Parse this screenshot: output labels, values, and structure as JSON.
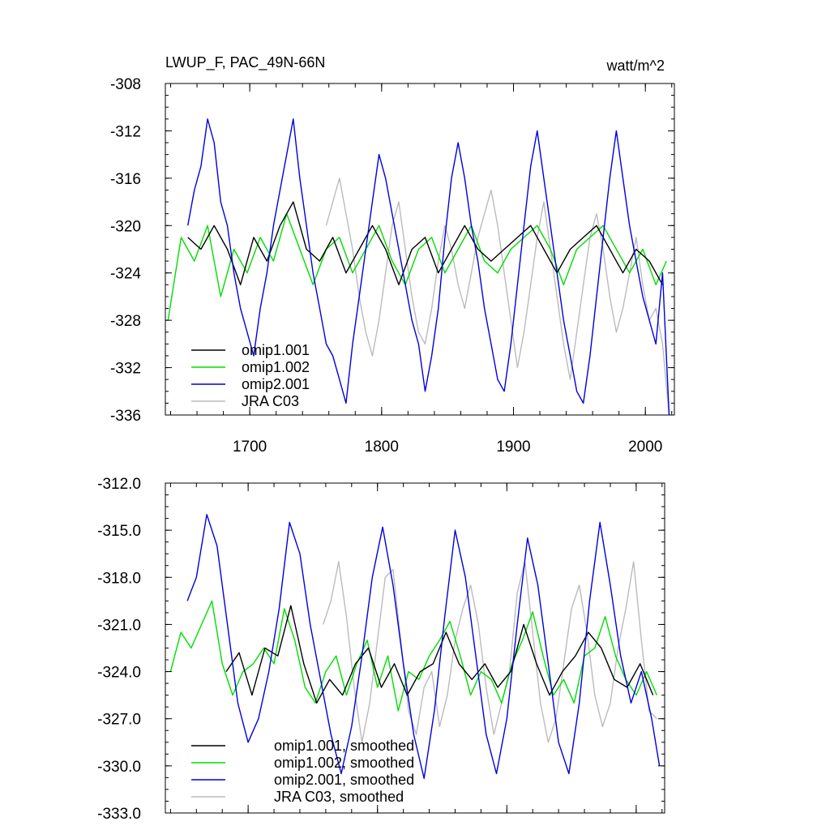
{
  "chart_data": [
    {
      "type": "line",
      "title": "LWUP_F, PAC_49N-66N",
      "units": "watt/m^2",
      "xlim": [
        1636,
        2022
      ],
      "ylim": [
        -336,
        -308
      ],
      "xticks": [
        1700,
        1800,
        1900,
        2000
      ],
      "xtick_labels": [
        "1700",
        "1800",
        "1900",
        "2000"
      ],
      "yticks": [
        -308,
        -312,
        -316,
        -320,
        -324,
        -328,
        -332,
        -336
      ],
      "ytick_labels": [
        "-308",
        "-312",
        "-316",
        "-320",
        "-324",
        "-328",
        "-332",
        "-336"
      ],
      "legend_position": "bottom-left",
      "series": [
        {
          "name": "omip1.001",
          "color": "#000000",
          "x": [
            1653,
            1663,
            1673,
            1683,
            1693,
            1703,
            1713,
            1723,
            1733,
            1743,
            1753,
            1763,
            1773,
            1783,
            1793,
            1803,
            1813,
            1823,
            1833,
            1843,
            1853,
            1863,
            1873,
            1883,
            1893,
            1903,
            1913,
            1923,
            1933,
            1943,
            1953,
            1963,
            1973,
            1983,
            1993,
            2003,
            2013
          ],
          "values": [
            -321,
            -322,
            -320,
            -322,
            -325,
            -321,
            -323,
            -320,
            -318,
            -322,
            -323,
            -321,
            -324,
            -322,
            -320,
            -322,
            -325,
            -322,
            -321,
            -324,
            -322,
            -320,
            -322,
            -323,
            -322,
            -321,
            -320,
            -322,
            -324,
            -322,
            -321,
            -320,
            -322,
            -324,
            -322,
            -323,
            -325
          ]
        },
        {
          "name": "omip1.002",
          "color": "#00dd00",
          "x": [
            1638,
            1648,
            1658,
            1668,
            1678,
            1688,
            1698,
            1708,
            1718,
            1728,
            1738,
            1748,
            1758,
            1768,
            1778,
            1788,
            1798,
            1808,
            1818,
            1828,
            1838,
            1848,
            1858,
            1868,
            1878,
            1888,
            1898,
            1908,
            1918,
            1928,
            1938,
            1948,
            1958,
            1968,
            1978,
            1988,
            1998,
            2008,
            2016
          ],
          "values": [
            -328,
            -321,
            -323,
            -320,
            -326,
            -322,
            -324,
            -321,
            -323,
            -319,
            -322,
            -325,
            -322,
            -321,
            -324,
            -322,
            -320,
            -323,
            -325,
            -322,
            -321,
            -324,
            -322,
            -320,
            -323,
            -324,
            -322,
            -321,
            -320,
            -322,
            -325,
            -322,
            -321,
            -320,
            -322,
            -324,
            -322,
            -325,
            -323
          ]
        },
        {
          "name": "omip2.001",
          "color": "#0000dd",
          "x": [
            1653,
            1658,
            1663,
            1668,
            1673,
            1678,
            1683,
            1688,
            1693,
            1698,
            1703,
            1708,
            1713,
            1718,
            1723,
            1728,
            1733,
            1738,
            1743,
            1748,
            1753,
            1758,
            1763,
            1768,
            1773,
            1778,
            1783,
            1788,
            1793,
            1798,
            1803,
            1808,
            1813,
            1818,
            1823,
            1828,
            1833,
            1838,
            1843,
            1848,
            1853,
            1858,
            1863,
            1868,
            1873,
            1878,
            1883,
            1888,
            1893,
            1898,
            1903,
            1908,
            1913,
            1918,
            1923,
            1928,
            1933,
            1938,
            1943,
            1948,
            1953,
            1958,
            1963,
            1968,
            1973,
            1978,
            1983,
            1988,
            1993,
            1998,
            2003,
            2008,
            2013,
            2018
          ],
          "values": [
            -320,
            -317,
            -315,
            -311,
            -313,
            -318,
            -320,
            -324,
            -327,
            -329,
            -331,
            -327,
            -324,
            -320,
            -317,
            -314,
            -311,
            -316,
            -320,
            -324,
            -327,
            -330,
            -331,
            -333,
            -335,
            -330,
            -326,
            -322,
            -318,
            -314,
            -316,
            -319,
            -322,
            -325,
            -328,
            -330,
            -334,
            -331,
            -327,
            -321,
            -316,
            -313,
            -316,
            -320,
            -323,
            -327,
            -330,
            -333,
            -334,
            -330,
            -325,
            -320,
            -315,
            -312,
            -316,
            -320,
            -324,
            -328,
            -331,
            -334,
            -335,
            -331,
            -326,
            -321,
            -316,
            -312,
            -316,
            -320,
            -323,
            -326,
            -328,
            -330,
            -324,
            -336
          ]
        },
        {
          "name": "JRA C03",
          "color": "#bbbbbb",
          "x": [
            1758,
            1763,
            1768,
            1773,
            1778,
            1783,
            1788,
            1793,
            1798,
            1803,
            1808,
            1813,
            1818,
            1823,
            1828,
            1833,
            1838,
            1843,
            1848,
            1853,
            1858,
            1863,
            1868,
            1873,
            1878,
            1883,
            1888,
            1893,
            1898,
            1903,
            1908,
            1913,
            1918,
            1923,
            1928,
            1933,
            1938,
            1943,
            1948,
            1953,
            1958,
            1963,
            1968,
            1973,
            1978,
            1983,
            1988,
            1993,
            1998,
            2003,
            2008,
            2013,
            2018
          ],
          "values": [
            -320,
            -318,
            -316,
            -319,
            -322,
            -326,
            -329,
            -331,
            -328,
            -324,
            -320,
            -318,
            -322,
            -326,
            -329,
            -330,
            -327,
            -323,
            -320,
            -322,
            -325,
            -327,
            -324,
            -321,
            -319,
            -317,
            -320,
            -324,
            -328,
            -332,
            -329,
            -325,
            -321,
            -318,
            -322,
            -326,
            -330,
            -333,
            -329,
            -325,
            -321,
            -319,
            -322,
            -326,
            -329,
            -327,
            -324,
            -321,
            -325,
            -328,
            -327,
            -330,
            -336
          ]
        }
      ]
    },
    {
      "type": "line",
      "title": "",
      "xlim": [
        1636,
        2022
      ],
      "ylim": [
        -333.0,
        -312.0
      ],
      "xticks": [
        1700,
        1800,
        1900,
        2000
      ],
      "yticks": [
        -312.0,
        -315.0,
        -318.0,
        -321.0,
        -324.0,
        -327.0,
        -330.0,
        -333.0
      ],
      "ytick_labels": [
        "-312.0",
        "-315.0",
        "-318.0",
        "-321.0",
        "-324.0",
        "-327.0",
        "-330.0",
        "-333.0"
      ],
      "legend_position": "bottom-left",
      "series": [
        {
          "name": "omip1.001, smoothed",
          "color": "#000000",
          "x": [
            1683,
            1693,
            1703,
            1713,
            1723,
            1733,
            1743,
            1753,
            1763,
            1773,
            1783,
            1793,
            1803,
            1813,
            1823,
            1833,
            1843,
            1853,
            1863,
            1873,
            1883,
            1893,
            1903,
            1913,
            1923,
            1933,
            1943,
            1953,
            1963,
            1973,
            1983,
            1993,
            2003,
            2013
          ],
          "values": [
            -324.0,
            -322.8,
            -325.5,
            -322.5,
            -323.0,
            -319.8,
            -323.5,
            -326.0,
            -324.5,
            -325.5,
            -323.5,
            -322.5,
            -325.0,
            -323.5,
            -325.5,
            -324.0,
            -323.5,
            -321.5,
            -323.5,
            -324.5,
            -323.5,
            -325.0,
            -324.0,
            -321.0,
            -323.5,
            -325.5,
            -324.0,
            -323.0,
            -321.5,
            -322.5,
            -324.5,
            -325.0,
            -323.5,
            -325.5
          ]
        },
        {
          "name": "omip1.002, smoothed",
          "color": "#00dd00",
          "x": [
            1640,
            1648,
            1656,
            1664,
            1672,
            1680,
            1688,
            1696,
            1704,
            1712,
            1720,
            1728,
            1736,
            1744,
            1752,
            1760,
            1768,
            1776,
            1784,
            1792,
            1800,
            1808,
            1816,
            1824,
            1832,
            1840,
            1848,
            1856,
            1864,
            1872,
            1880,
            1888,
            1896,
            1904,
            1912,
            1920,
            1928,
            1936,
            1944,
            1952,
            1960,
            1968,
            1976,
            1984,
            1992,
            2000,
            2008,
            2016
          ],
          "values": [
            -324.0,
            -321.5,
            -322.5,
            -321.0,
            -319.5,
            -323.5,
            -325.5,
            -324.0,
            -323.5,
            -322.5,
            -323.5,
            -320.0,
            -322.0,
            -325.0,
            -326.0,
            -324.0,
            -323.0,
            -325.5,
            -323.5,
            -322.0,
            -325.0,
            -323.0,
            -326.5,
            -324.0,
            -324.5,
            -323.0,
            -322.0,
            -320.8,
            -323.0,
            -325.5,
            -324.0,
            -324.5,
            -326.0,
            -323.5,
            -322.0,
            -320.2,
            -323.0,
            -325.5,
            -324.5,
            -326.0,
            -323.0,
            -322.5,
            -320.5,
            -323.0,
            -324.5,
            -325.5,
            -324.0,
            -325.5
          ]
        },
        {
          "name": "omip2.001, smoothed",
          "color": "#0000dd",
          "x": [
            1653,
            1660,
            1668,
            1676,
            1684,
            1692,
            1700,
            1708,
            1716,
            1724,
            1732,
            1740,
            1748,
            1756,
            1764,
            1772,
            1780,
            1788,
            1796,
            1804,
            1812,
            1820,
            1828,
            1836,
            1844,
            1852,
            1860,
            1868,
            1876,
            1884,
            1892,
            1900,
            1908,
            1916,
            1924,
            1932,
            1940,
            1948,
            1956,
            1964,
            1972,
            1980,
            1988,
            1996,
            2004,
            2012,
            2018
          ],
          "values": [
            -319.5,
            -318.0,
            -314.0,
            -316.0,
            -321.0,
            -326.0,
            -328.5,
            -327.0,
            -324.0,
            -320.0,
            -314.5,
            -316.5,
            -321.0,
            -324.5,
            -328.0,
            -330.5,
            -327.5,
            -323.0,
            -318.0,
            -314.8,
            -318.5,
            -323.5,
            -328.0,
            -330.8,
            -326.5,
            -320.5,
            -315.0,
            -318.0,
            -323.0,
            -328.0,
            -330.5,
            -327.0,
            -321.0,
            -315.5,
            -318.5,
            -323.5,
            -328.5,
            -330.5,
            -326.0,
            -319.5,
            -314.5,
            -318.5,
            -323.0,
            -326.0,
            -324.0,
            -327.0,
            -330.0
          ]
        },
        {
          "name": "JRA C03, smoothed",
          "color": "#bbbbbb",
          "x": [
            1758,
            1764,
            1770,
            1776,
            1782,
            1788,
            1794,
            1800,
            1806,
            1812,
            1818,
            1824,
            1830,
            1836,
            1842,
            1848,
            1854,
            1860,
            1866,
            1872,
            1878,
            1884,
            1890,
            1896,
            1902,
            1908,
            1914,
            1920,
            1926,
            1932,
            1938,
            1944,
            1950,
            1956,
            1962,
            1968,
            1974,
            1980,
            1986,
            1992,
            1998,
            2004,
            2010,
            2016
          ],
          "values": [
            -321.0,
            -319.5,
            -317.0,
            -320.5,
            -325.0,
            -328.5,
            -326.0,
            -322.0,
            -318.0,
            -317.5,
            -322.0,
            -326.5,
            -328.0,
            -325.0,
            -324.0,
            -327.5,
            -325.5,
            -322.0,
            -320.0,
            -318.5,
            -321.0,
            -325.0,
            -328.0,
            -326.0,
            -324.0,
            -319.0,
            -317.0,
            -321.5,
            -326.0,
            -328.5,
            -327.0,
            -323.5,
            -320.0,
            -318.5,
            -321.5,
            -325.5,
            -327.5,
            -326.0,
            -322.5,
            -320.0,
            -317.0,
            -322.0,
            -326.5,
            -327.0
          ]
        }
      ]
    }
  ]
}
